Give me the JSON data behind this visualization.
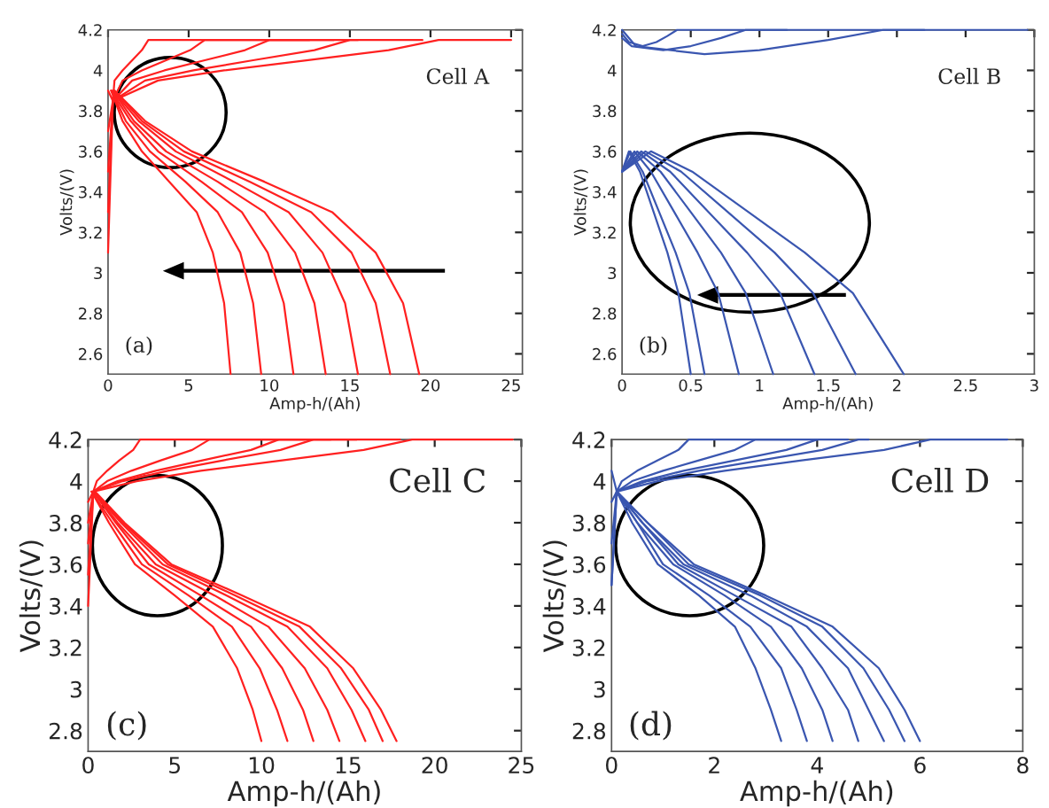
{
  "chart_data": [
    {
      "type": "line",
      "xlabel": "Amp-h/(Ah)",
      "ylabel": "Volts/(V)",
      "xlim": [
        0,
        25.7
      ],
      "ylim": [
        2.5,
        4.2
      ],
      "xticks": [
        0,
        5,
        10,
        15,
        20,
        25
      ],
      "yticks": [
        2.6,
        2.8,
        3,
        3.2,
        3.4,
        3.6,
        3.8,
        4,
        4.2
      ],
      "annotations": [
        "Cell A",
        "(a)"
      ],
      "series": [
        {
          "color": "#ff2020",
          "x": [
            0.2,
            0.9,
            2.1,
            3.8,
            5.5,
            6.5,
            7.2,
            7.6
          ],
          "values": [
            3.9,
            3.75,
            3.6,
            3.45,
            3.3,
            3.1,
            2.85,
            2.5
          ]
        },
        {
          "color": "#ff2020",
          "x": [
            0.2,
            1.1,
            2.6,
            4.8,
            6.8,
            8.2,
            9.0,
            9.5
          ],
          "values": [
            3.9,
            3.75,
            3.6,
            3.45,
            3.3,
            3.1,
            2.85,
            2.5
          ]
        },
        {
          "color": "#ff2020",
          "x": [
            0.2,
            1.4,
            3.1,
            5.8,
            8.3,
            9.9,
            10.9,
            11.5
          ],
          "values": [
            3.9,
            3.75,
            3.6,
            3.45,
            3.3,
            3.1,
            2.85,
            2.5
          ]
        },
        {
          "color": "#ff2020",
          "x": [
            0.3,
            1.6,
            3.6,
            6.8,
            9.7,
            11.6,
            12.8,
            13.5
          ],
          "values": [
            3.9,
            3.75,
            3.6,
            3.45,
            3.3,
            3.1,
            2.85,
            2.5
          ]
        },
        {
          "color": "#ff2020",
          "x": [
            0.3,
            1.9,
            4.2,
            7.8,
            11.2,
            13.3,
            14.7,
            15.5
          ],
          "values": [
            3.9,
            3.75,
            3.6,
            3.45,
            3.3,
            3.1,
            2.85,
            2.5
          ]
        },
        {
          "color": "#ff2020",
          "x": [
            0.4,
            2.1,
            4.7,
            8.8,
            12.6,
            15.1,
            16.6,
            17.5
          ],
          "values": [
            3.9,
            3.75,
            3.6,
            3.45,
            3.3,
            3.1,
            2.85,
            2.5
          ]
        },
        {
          "color": "#ff2020",
          "x": [
            0.4,
            2.3,
            5.2,
            9.7,
            13.9,
            16.6,
            18.3,
            19.3
          ],
          "values": [
            3.9,
            3.75,
            3.6,
            3.45,
            3.3,
            3.1,
            2.85,
            2.5
          ]
        },
        {
          "color": "#ff2020",
          "x": [
            0,
            0.3,
            0.4,
            0.9,
            1.5,
            2.1,
            2.5,
            12.5
          ],
          "values": [
            3.9,
            3.85,
            3.95,
            4,
            4.05,
            4.1,
            4.15,
            4.15
          ]
        },
        {
          "color": "#ff2020",
          "x": [
            0,
            0.3,
            0.9,
            2.1,
            3.6,
            5.1,
            6,
            14
          ],
          "values": [
            3.7,
            3.85,
            3.95,
            4,
            4.05,
            4.1,
            4.15,
            4.15
          ]
        },
        {
          "color": "#ff2020",
          "x": [
            0,
            0.3,
            1.5,
            3.5,
            6,
            8.5,
            10,
            15.5
          ],
          "values": [
            3.5,
            3.85,
            3.95,
            4,
            4.05,
            4.1,
            4.15,
            4.15
          ]
        },
        {
          "color": "#ff2020",
          "x": [
            0,
            0.3,
            2.3,
            5.3,
            9,
            12.8,
            15,
            19.5
          ],
          "values": [
            3.3,
            3.85,
            3.95,
            4,
            4.05,
            4.1,
            4.15,
            4.15
          ]
        },
        {
          "color": "#ff2020",
          "x": [
            0,
            0.3,
            3.1,
            7.2,
            12.3,
            17.4,
            20.5,
            25
          ],
          "values": [
            3.1,
            3.85,
            3.95,
            4,
            4.05,
            4.1,
            4.15,
            4.15
          ]
        }
      ]
    },
    {
      "type": "line",
      "xlabel": "Amp-h/(Ah)",
      "ylabel": "Volts/(V)",
      "xlim": [
        0,
        3
      ],
      "ylim": [
        2.5,
        4.2
      ],
      "xticks": [
        0,
        0.5,
        1,
        1.5,
        2,
        2.5,
        3
      ],
      "yticks": [
        2.6,
        2.8,
        3,
        3.2,
        3.4,
        3.6,
        3.8,
        4,
        4.2
      ],
      "annotations": [
        "Cell B",
        "(b)"
      ],
      "series": [
        {
          "color": "#3a56b0",
          "x": [
            0,
            0.05,
            0.13,
            0.23,
            0.33,
            0.41,
            0.5
          ],
          "values": [
            3.5,
            3.6,
            3.5,
            3.3,
            3.1,
            2.9,
            2.5
          ]
        },
        {
          "color": "#3a56b0",
          "x": [
            0,
            0.06,
            0.15,
            0.27,
            0.39,
            0.49,
            0.6
          ],
          "values": [
            3.5,
            3.6,
            3.5,
            3.3,
            3.1,
            2.9,
            2.5
          ]
        },
        {
          "color": "#3a56b0",
          "x": [
            0,
            0.09,
            0.21,
            0.38,
            0.55,
            0.7,
            0.85
          ],
          "values": [
            3.5,
            3.6,
            3.5,
            3.3,
            3.1,
            2.9,
            2.5
          ]
        },
        {
          "color": "#3a56b0",
          "x": [
            0,
            0.11,
            0.28,
            0.5,
            0.72,
            0.9,
            1.1
          ],
          "values": [
            3.5,
            3.6,
            3.5,
            3.3,
            3.1,
            2.9,
            2.5
          ]
        },
        {
          "color": "#3a56b0",
          "x": [
            0,
            0.14,
            0.35,
            0.63,
            0.91,
            1.15,
            1.4
          ],
          "values": [
            3.5,
            3.6,
            3.5,
            3.3,
            3.1,
            2.9,
            2.5
          ]
        },
        {
          "color": "#3a56b0",
          "x": [
            0,
            0.17,
            0.43,
            0.77,
            1.11,
            1.39,
            1.7
          ],
          "values": [
            3.5,
            3.6,
            3.5,
            3.3,
            3.1,
            2.9,
            2.5
          ]
        },
        {
          "color": "#3a56b0",
          "x": [
            0,
            0.21,
            0.51,
            0.92,
            1.33,
            1.68,
            2.05
          ],
          "values": [
            3.5,
            3.6,
            3.5,
            3.3,
            3.1,
            2.9,
            2.5
          ]
        },
        {
          "color": "#3a56b0",
          "x": [
            0,
            0.05,
            0.15,
            0.25,
            0.33,
            0.4,
            1.2
          ],
          "values": [
            4.18,
            4.14,
            4.12,
            4.14,
            4.17,
            4.2,
            4.2
          ]
        },
        {
          "color": "#3a56b0",
          "x": [
            0,
            0.07,
            0.3,
            0.5,
            0.72,
            0.9,
            2.2
          ],
          "values": [
            4.16,
            4.12,
            4.1,
            4.12,
            4.16,
            4.2,
            4.2
          ]
        },
        {
          "color": "#3a56b0",
          "x": [
            0,
            0.1,
            0.6,
            1.0,
            1.5,
            1.9,
            2.95
          ],
          "values": [
            4.2,
            4.12,
            4.08,
            4.1,
            4.15,
            4.2,
            4.2
          ]
        }
      ]
    },
    {
      "type": "line",
      "xlabel": "Amp-h/(Ah)",
      "ylabel": "Volts/(V)",
      "xlim": [
        0,
        25
      ],
      "ylim": [
        2.7,
        4.2
      ],
      "xticks": [
        0,
        5,
        10,
        15,
        20,
        25
      ],
      "yticks": [
        2.8,
        3,
        3.2,
        3.4,
        3.6,
        3.8,
        4,
        4.2
      ],
      "annotations": [
        "Cell C",
        "(c)"
      ],
      "series": [
        {
          "color": "#ff2020",
          "x": [
            0.2,
            1.2,
            2.7,
            5.0,
            7.2,
            8.6,
            9.5,
            10
          ],
          "values": [
            3.95,
            3.8,
            3.6,
            3.45,
            3.3,
            3.1,
            2.9,
            2.75
          ]
        },
        {
          "color": "#ff2020",
          "x": [
            0.2,
            1.4,
            3.1,
            5.8,
            8.3,
            9.9,
            10.9,
            11.5
          ],
          "values": [
            3.95,
            3.8,
            3.6,
            3.45,
            3.3,
            3.1,
            2.9,
            2.75
          ]
        },
        {
          "color": "#ff2020",
          "x": [
            0.3,
            1.6,
            3.5,
            6.5,
            9.4,
            11.2,
            12.4,
            13
          ],
          "values": [
            3.95,
            3.8,
            3.6,
            3.45,
            3.3,
            3.1,
            2.9,
            2.75
          ]
        },
        {
          "color": "#ff2020",
          "x": [
            0.3,
            1.7,
            3.9,
            7.3,
            10.4,
            12.5,
            13.8,
            14.5
          ],
          "values": [
            3.95,
            3.8,
            3.6,
            3.45,
            3.3,
            3.1,
            2.9,
            2.75
          ]
        },
        {
          "color": "#ff2020",
          "x": [
            0.3,
            1.9,
            4.3,
            8,
            11.5,
            13.8,
            15.2,
            16
          ],
          "values": [
            3.95,
            3.8,
            3.6,
            3.45,
            3.3,
            3.1,
            2.9,
            2.75
          ]
        },
        {
          "color": "#ff2020",
          "x": [
            0.3,
            2,
            4.6,
            8.5,
            12.2,
            14.6,
            16.2,
            17
          ],
          "values": [
            3.95,
            3.8,
            3.6,
            3.45,
            3.3,
            3.1,
            2.9,
            2.75
          ]
        },
        {
          "color": "#ff2020",
          "x": [
            0.4,
            2.1,
            4.8,
            8.9,
            12.8,
            15.3,
            16.9,
            17.8
          ],
          "values": [
            3.95,
            3.8,
            3.6,
            3.45,
            3.3,
            3.1,
            2.9,
            2.75
          ]
        },
        {
          "color": "#ff2020",
          "x": [
            0,
            0.3,
            0.5,
            1.1,
            1.8,
            2.6,
            3,
            12.5
          ],
          "values": [
            3.9,
            3.95,
            4,
            4.05,
            4.1,
            4.15,
            4.2,
            4.2
          ]
        },
        {
          "color": "#ff2020",
          "x": [
            0,
            0.3,
            1.1,
            2.5,
            4.2,
            6,
            7,
            14
          ],
          "values": [
            3.8,
            3.95,
            4,
            4.05,
            4.1,
            4.15,
            4.2,
            4.2
          ]
        },
        {
          "color": "#ff2020",
          "x": [
            0,
            0.3,
            1.7,
            3.9,
            6.6,
            9.4,
            11,
            15.5
          ],
          "values": [
            3.7,
            3.95,
            4,
            4.05,
            4.1,
            4.15,
            4.2,
            4.2
          ]
        },
        {
          "color": "#ff2020",
          "x": [
            0,
            0.3,
            2,
            4.6,
            7.8,
            11.1,
            13,
            18
          ],
          "values": [
            3.55,
            3.95,
            4,
            4.05,
            4.1,
            4.15,
            4.2,
            4.2
          ]
        },
        {
          "color": "#ff2020",
          "x": [
            0,
            0.3,
            2.8,
            6.5,
            11.2,
            15.9,
            18.7,
            24.5
          ],
          "values": [
            3.4,
            3.95,
            4,
            4.05,
            4.1,
            4.15,
            4.2,
            4.2
          ]
        }
      ]
    },
    {
      "type": "line",
      "xlabel": "Amp-h/(Ah)",
      "ylabel": "Volts/(V)",
      "xlim": [
        0,
        8
      ],
      "ylim": [
        2.7,
        4.2
      ],
      "xticks": [
        0,
        2,
        4,
        6,
        8
      ],
      "yticks": [
        2.8,
        3,
        3.2,
        3.4,
        3.6,
        3.8,
        4,
        4.2
      ],
      "annotations": [
        "Cell D",
        "(d)"
      ],
      "series": [
        {
          "color": "#3a56b0",
          "x": [
            0.1,
            0.4,
            0.9,
            1.7,
            2.4,
            2.8,
            3.1,
            3.3
          ],
          "values": [
            3.95,
            3.8,
            3.6,
            3.45,
            3.3,
            3.1,
            2.9,
            2.75
          ]
        },
        {
          "color": "#3a56b0",
          "x": [
            0.1,
            0.5,
            1,
            1.9,
            2.7,
            3.3,
            3.6,
            3.8
          ],
          "values": [
            3.95,
            3.8,
            3.6,
            3.45,
            3.3,
            3.1,
            2.9,
            2.75
          ]
        },
        {
          "color": "#3a56b0",
          "x": [
            0.1,
            0.5,
            1.2,
            2.2,
            3.1,
            3.7,
            4.1,
            4.3
          ],
          "values": [
            3.95,
            3.8,
            3.6,
            3.45,
            3.3,
            3.1,
            2.9,
            2.75
          ]
        },
        {
          "color": "#3a56b0",
          "x": [
            0.1,
            0.6,
            1.3,
            2.4,
            3.5,
            4.1,
            4.6,
            4.8
          ],
          "values": [
            3.95,
            3.8,
            3.6,
            3.45,
            3.3,
            3.1,
            2.9,
            2.75
          ]
        },
        {
          "color": "#3a56b0",
          "x": [
            0.1,
            0.6,
            1.4,
            2.7,
            3.8,
            4.6,
            5,
            5.3
          ],
          "values": [
            3.95,
            3.8,
            3.6,
            3.45,
            3.3,
            3.1,
            2.9,
            2.75
          ]
        },
        {
          "color": "#3a56b0",
          "x": [
            0.1,
            0.7,
            1.5,
            2.9,
            4.1,
            4.9,
            5.4,
            5.7
          ],
          "values": [
            3.95,
            3.8,
            3.6,
            3.45,
            3.3,
            3.1,
            2.9,
            2.75
          ]
        },
        {
          "color": "#3a56b0",
          "x": [
            0.1,
            0.7,
            1.6,
            3,
            4.3,
            5.2,
            5.7,
            6
          ],
          "values": [
            3.95,
            3.8,
            3.6,
            3.45,
            3.3,
            3.1,
            2.9,
            2.75
          ]
        },
        {
          "color": "#3a56b0",
          "x": [
            0,
            0.1,
            0.2,
            0.5,
            0.9,
            1.3,
            1.5,
            3.5
          ],
          "values": [
            4.05,
            3.95,
            4,
            4.05,
            4.1,
            4.15,
            4.2,
            4.2
          ]
        },
        {
          "color": "#3a56b0",
          "x": [
            0,
            0.1,
            0.4,
            1,
            1.7,
            2.4,
            2.8,
            4
          ],
          "values": [
            3.9,
            3.95,
            4,
            4.05,
            4.1,
            4.15,
            4.2,
            4.2
          ]
        },
        {
          "color": "#3a56b0",
          "x": [
            0,
            0.1,
            0.6,
            1.4,
            2.4,
            3.4,
            4,
            4.6
          ],
          "values": [
            3.7,
            3.95,
            4,
            4.05,
            4.1,
            4.15,
            4.2,
            4.2
          ]
        },
        {
          "color": "#3a56b0",
          "x": [
            0,
            0.1,
            0.7,
            1.7,
            2.9,
            4.1,
            4.8,
            5
          ],
          "values": [
            3.5,
            3.95,
            4,
            4.05,
            4.1,
            4.15,
            4.2,
            4.2
          ]
        },
        {
          "color": "#3a56b0",
          "x": [
            0,
            0.1,
            0.9,
            2.2,
            3.7,
            5.3,
            6.2,
            7.7
          ],
          "values": [
            3.5,
            3.95,
            4,
            4.05,
            4.1,
            4.15,
            4.2,
            4.2
          ]
        }
      ]
    }
  ]
}
